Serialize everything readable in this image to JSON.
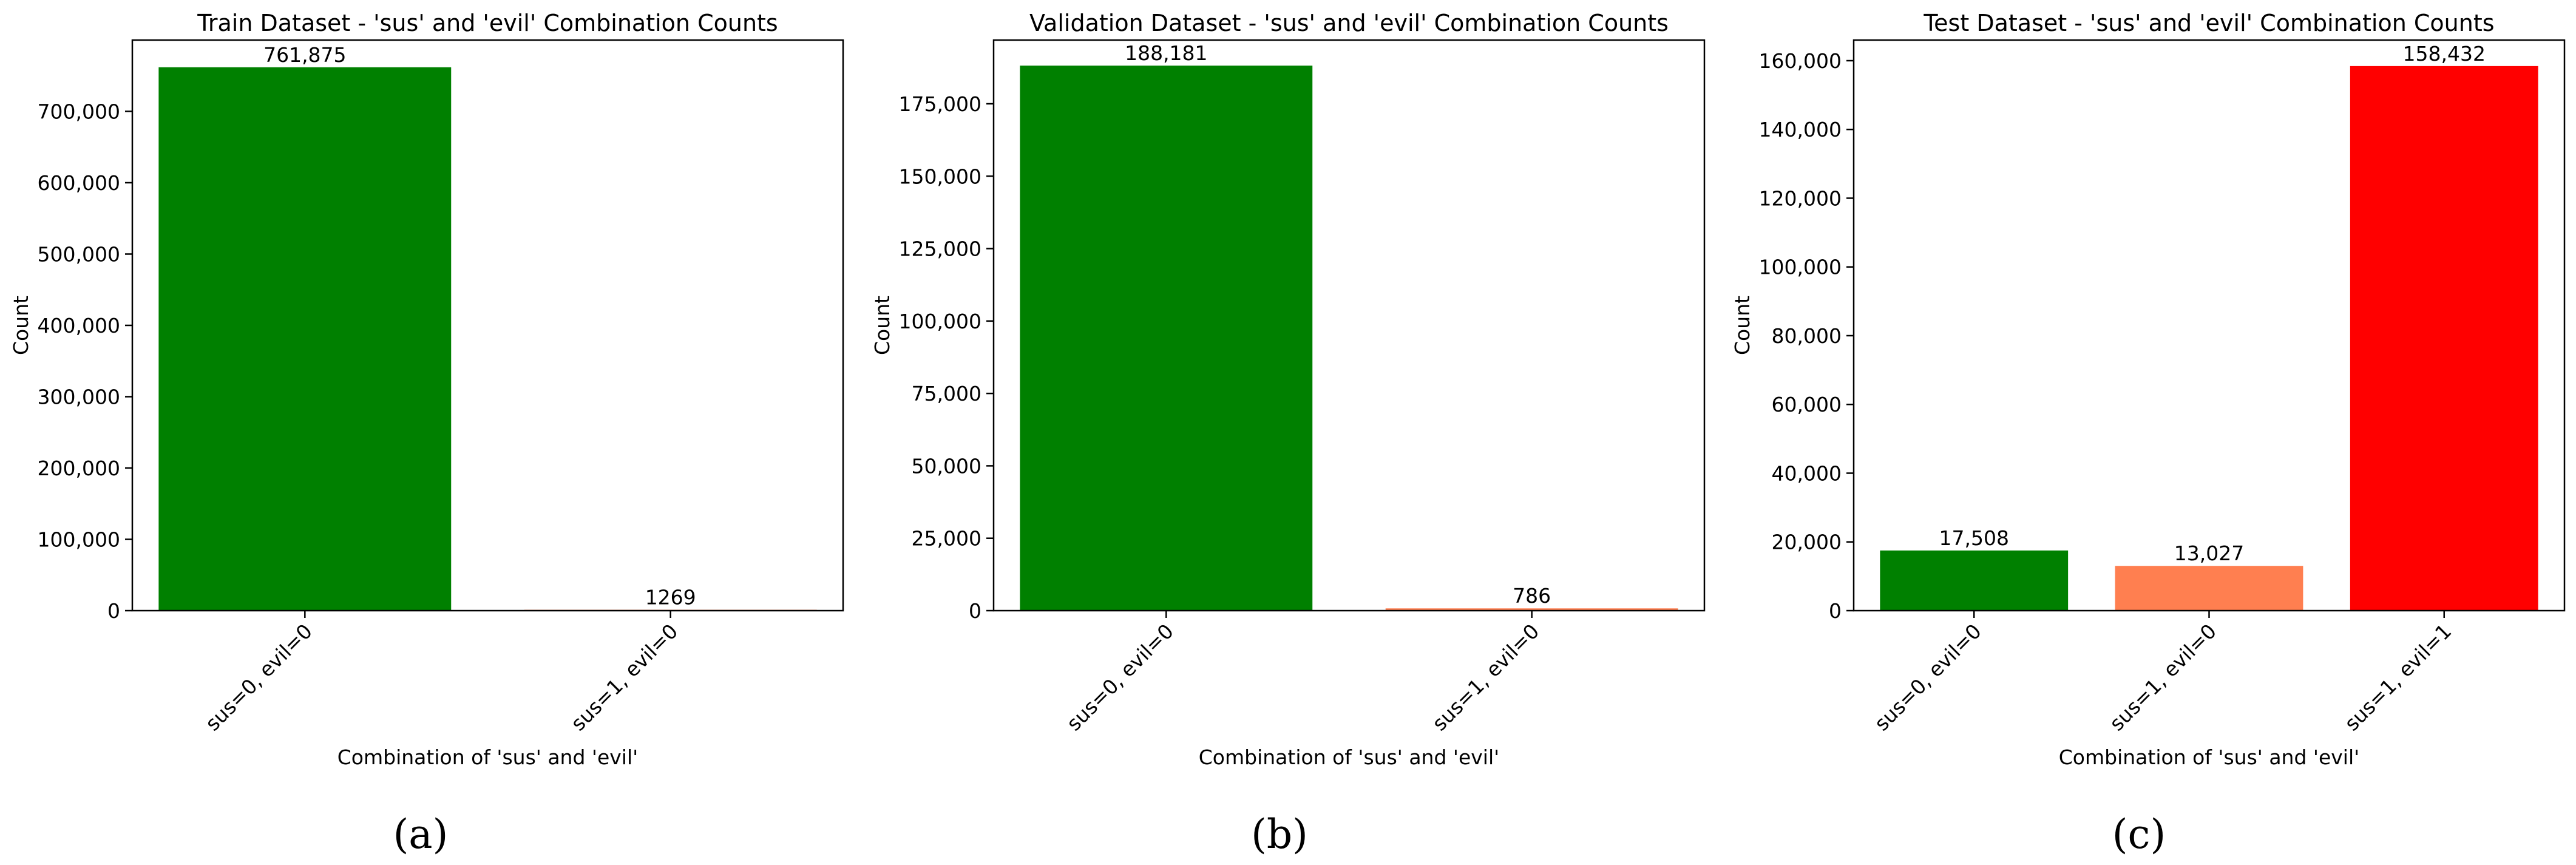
{
  "chart_data": [
    {
      "type": "bar",
      "title": "Train Dataset - 'sus' and 'evil' Combination Counts",
      "xlabel": "Combination of 'sus' and 'evil'",
      "ylabel": "Count",
      "categories": [
        "sus=0, evil=0",
        "sus=1, evil=0"
      ],
      "values": [
        761875,
        1269
      ],
      "data_labels": [
        "761,875",
        "1269"
      ],
      "colors": [
        "#008000",
        "#ff7f50"
      ],
      "ylim": [
        0,
        800000
      ],
      "yticks": [
        0,
        100000,
        200000,
        300000,
        400000,
        500000,
        600000,
        700000
      ],
      "ytick_labels": [
        "0",
        "100,000",
        "200,000",
        "300,000",
        "400,000",
        "500,000",
        "600,000",
        "700,000"
      ],
      "grid": false,
      "caption": "(a)"
    },
    {
      "type": "bar",
      "title": "Validation Dataset - 'sus' and 'evil' Combination Counts",
      "xlabel": "Combination of 'sus' and 'evil'",
      "ylabel": "Count",
      "categories": [
        "sus=0, evil=0",
        "sus=1, evil=0"
      ],
      "values": [
        188181,
        786
      ],
      "data_labels": [
        "188,181",
        "786"
      ],
      "colors": [
        "#008000",
        "#ff7f50"
      ],
      "ylim": [
        0,
        197000
      ],
      "yticks": [
        0,
        25000,
        50000,
        75000,
        100000,
        125000,
        150000,
        175000
      ],
      "ytick_labels": [
        "0",
        "25,000",
        "50,000",
        "75,000",
        "100,000",
        "125,000",
        "150,000",
        "175,000"
      ],
      "grid": false,
      "caption": "(b)"
    },
    {
      "type": "bar",
      "title": "Test Dataset - 'sus' and 'evil' Combination Counts",
      "xlabel": "Combination of 'sus' and 'evil'",
      "ylabel": "Count",
      "categories": [
        "sus=0, evil=0",
        "sus=1, evil=0",
        "sus=1, evil=1"
      ],
      "values": [
        17508,
        13027,
        158432
      ],
      "data_labels": [
        "17,508",
        "13,027",
        "158,432"
      ],
      "colors": [
        "#008000",
        "#ff7f50",
        "#ff0000"
      ],
      "ylim": [
        0,
        166000
      ],
      "yticks": [
        0,
        20000,
        40000,
        60000,
        80000,
        100000,
        120000,
        140000,
        160000
      ],
      "ytick_labels": [
        "0",
        "20,000",
        "40,000",
        "60,000",
        "80,000",
        "100,000",
        "120,000",
        "140,000",
        "160,000"
      ],
      "grid": false,
      "caption": "(c)"
    }
  ]
}
